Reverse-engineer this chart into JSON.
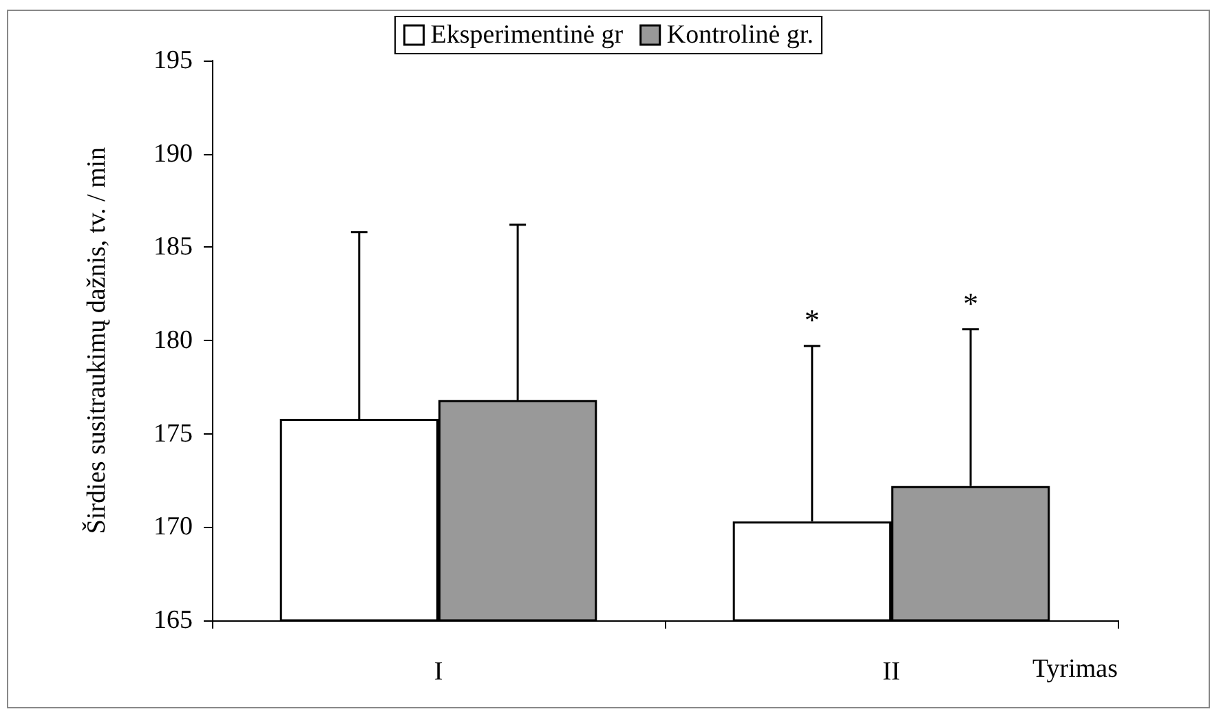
{
  "chart_data": {
    "type": "bar",
    "xlabel": "Tyrimas",
    "ylabel": "Širdies susitraukimų dažnis, tv. / min",
    "categories": [
      "I",
      "II"
    ],
    "series": [
      {
        "name": "Eksperimentinė gr",
        "color": "#ffffff",
        "values": [
          175.8,
          170.3
        ],
        "errors": [
          [
            175.8,
            185.8
          ],
          [
            170.3,
            179.7
          ]
        ]
      },
      {
        "name": "Kontrolinė gr.",
        "color": "#999999",
        "values": [
          176.8,
          172.2
        ],
        "errors": [
          [
            176.8,
            186.2
          ],
          [
            172.2,
            180.6
          ]
        ]
      }
    ],
    "annotations": [
      "*",
      "*"
    ],
    "ylim": [
      165,
      195
    ],
    "yticks": [
      165,
      170,
      175,
      180,
      185,
      190,
      195
    ],
    "grid": false,
    "legend": "top"
  }
}
